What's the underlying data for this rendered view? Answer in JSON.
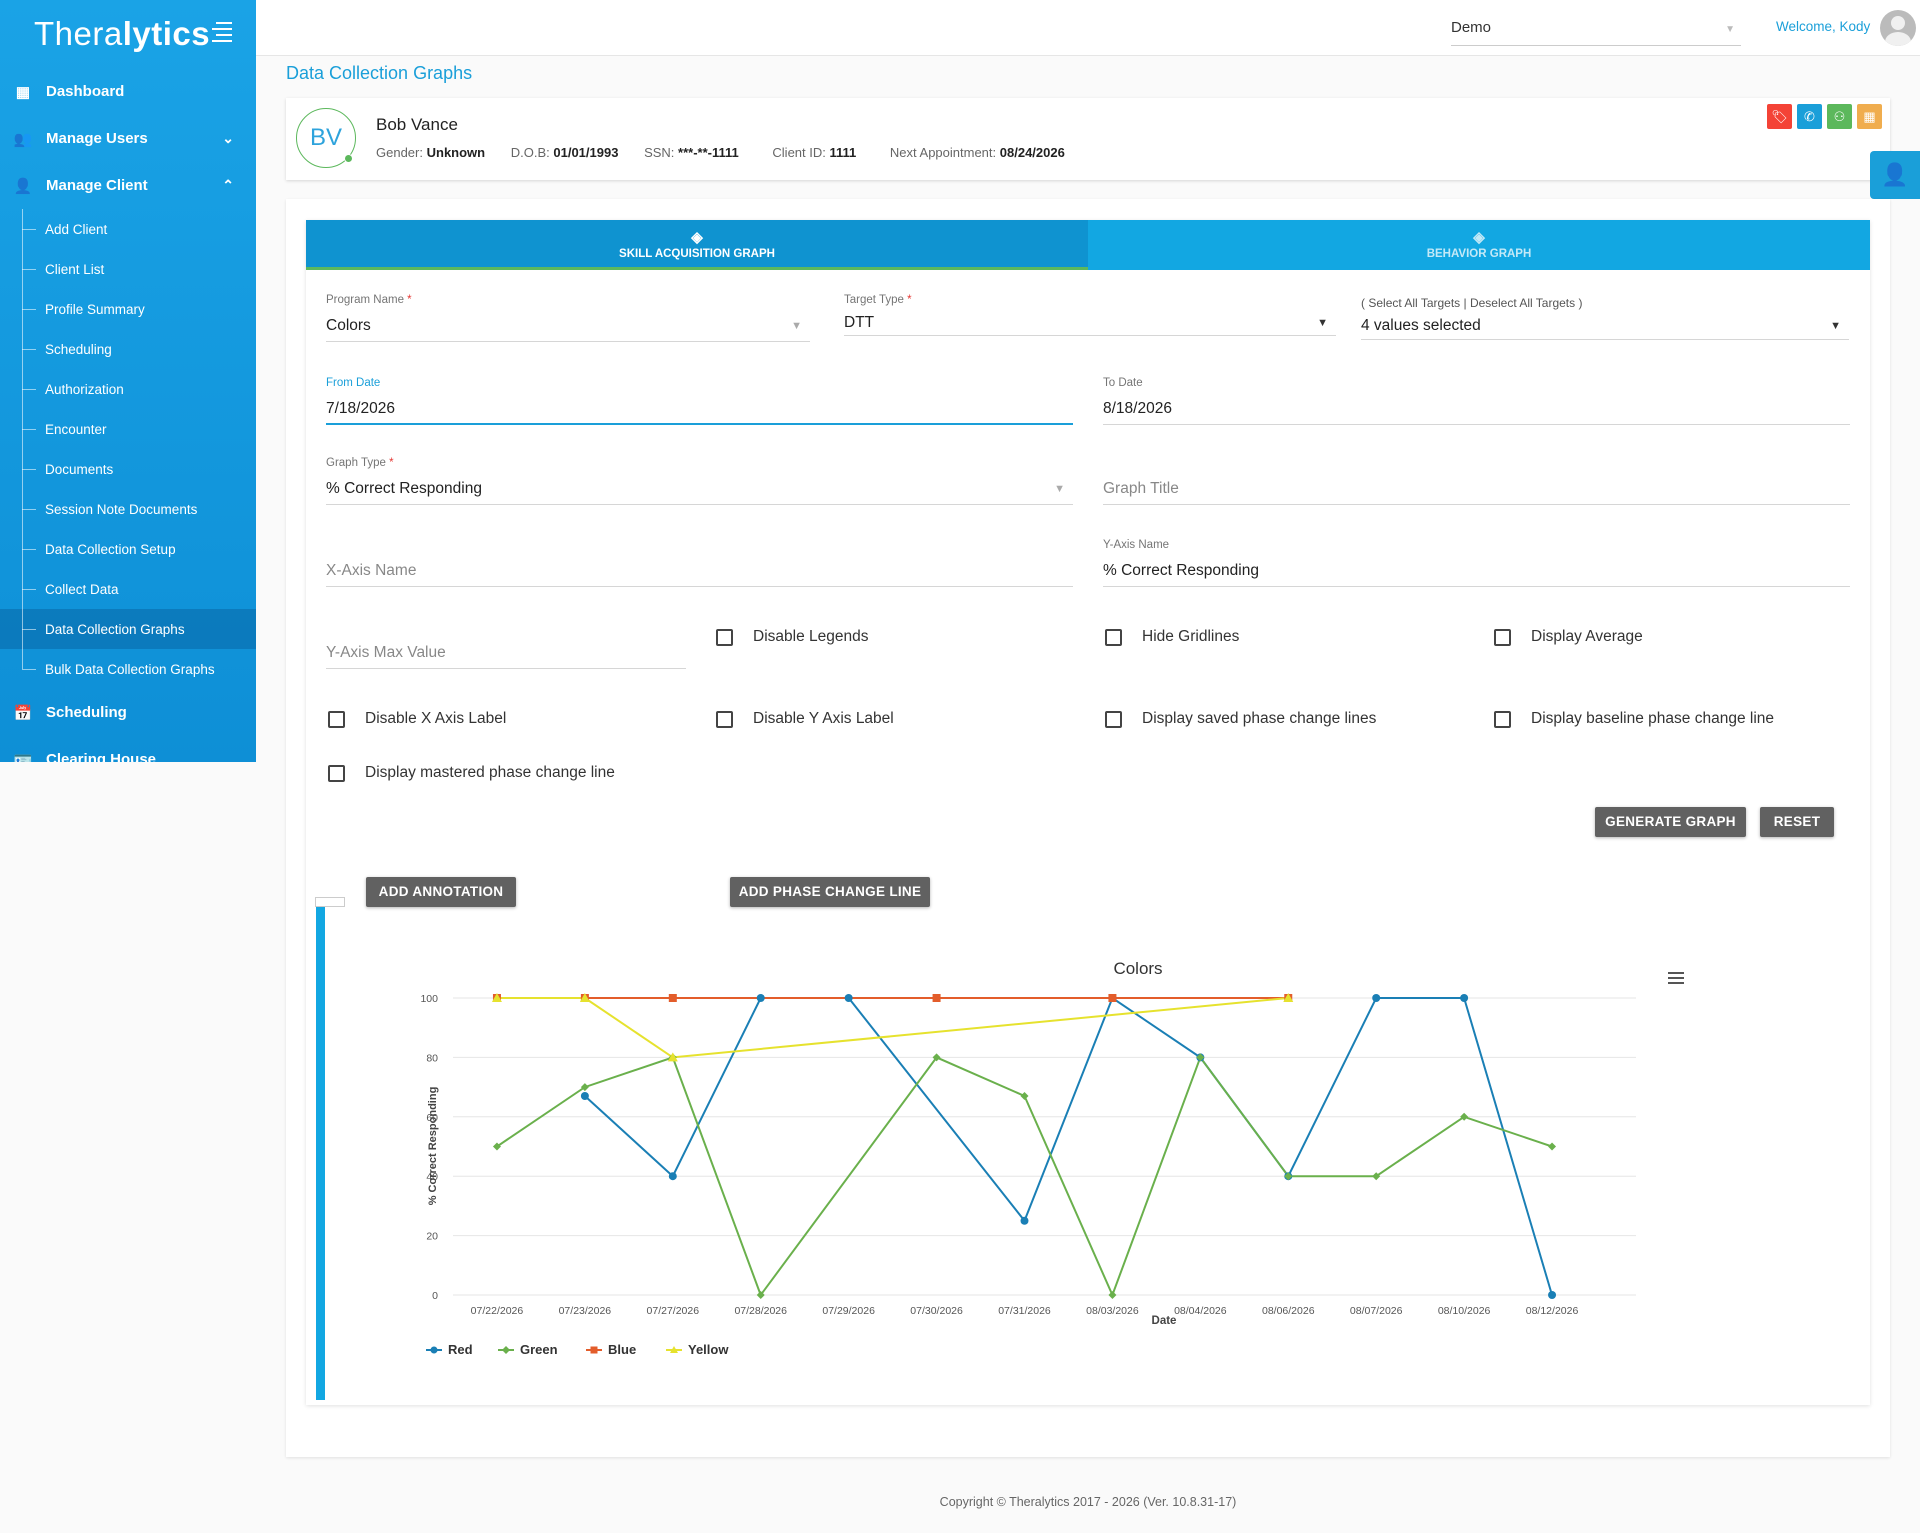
{
  "brand": {
    "prefix": "Thera",
    "suffix": "lytics"
  },
  "sidebar": {
    "items": [
      {
        "label": "Dashboard",
        "icon": "dashboard-icon"
      },
      {
        "label": "Manage Users",
        "icon": "users-icon"
      },
      {
        "label": "Manage Client",
        "icon": "person-icon"
      }
    ],
    "sub_items": [
      "Add Client",
      "Client List",
      "Profile Summary",
      "Scheduling",
      "Authorization",
      "Encounter",
      "Documents",
      "Session Note Documents",
      "Data Collection Setup",
      "Collect Data",
      "Data Collection Graphs",
      "Bulk Data Collection Graphs"
    ],
    "bottom_items": [
      {
        "label": "Scheduling",
        "icon": "calendar-icon"
      },
      {
        "label": "Clearing House",
        "icon": "id-card-icon"
      }
    ]
  },
  "topbar": {
    "org": "Demo",
    "welcome": "Welcome, Kody"
  },
  "page_title": "Data Collection Graphs",
  "client": {
    "initials": "BV",
    "name": "Bob Vance",
    "gender_label": "Gender:",
    "gender": "Unknown",
    "dob_label": "D.O.B:",
    "dob": "01/01/1993",
    "ssn_label": "SSN:",
    "ssn": "***-**-1111",
    "client_id_label": "Client ID:",
    "client_id": "1111",
    "next_appt_label": "Next Appointment:",
    "next_appt": "08/24/2026"
  },
  "action_colors": {
    "tag": "#f44336",
    "phone": "#1a9fd9",
    "user": "#5cb85c",
    "calendar": "#f0ad4e"
  },
  "tabs": {
    "skill": "SKILL ACQUISITION GRAPH",
    "behavior": "BEHAVIOR GRAPH"
  },
  "form": {
    "program_name_label": "Program Name",
    "program_name": "Colors",
    "target_type_label": "Target Type",
    "target_type": "DTT",
    "targets_select_all": "Select All Targets",
    "targets_deselect_all": "Deselect All Targets",
    "targets_value": "4 values selected",
    "from_date_label": "From Date",
    "from_date": "7/18/2026",
    "to_date_label": "To Date",
    "to_date": "8/18/2026",
    "graph_type_label": "Graph Type",
    "graph_type": "% Correct Responding",
    "graph_title_placeholder": "Graph Title",
    "x_axis_placeholder": "X-Axis Name",
    "y_axis_label": "Y-Axis Name",
    "y_axis_value": "% Correct Responding",
    "y_max_placeholder": "Y-Axis Max Value",
    "checkboxes": {
      "disable_legends": "Disable Legends",
      "hide_gridlines": "Hide Gridlines",
      "display_average": "Display Average",
      "disable_x_label": "Disable X Axis Label",
      "disable_y_label": "Disable Y Axis Label",
      "saved_phase": "Display saved phase change lines",
      "baseline_phase": "Display baseline phase change line",
      "mastered_phase": "Display mastered phase change line"
    },
    "generate_button": "GENERATE GRAPH",
    "reset_button": "RESET",
    "add_annotation_button": "ADD ANNOTATION",
    "add_phase_button": "ADD PHASE CHANGE LINE"
  },
  "chart_data": {
    "type": "line",
    "title": "Colors",
    "xlabel": "Date",
    "ylabel": "% Correct Responding",
    "ylim": [
      0,
      100
    ],
    "yticks": [
      0,
      20,
      40,
      60,
      80,
      100
    ],
    "grid": true,
    "legend_position": "bottom-left",
    "categories": [
      "07/22/2026",
      "07/23/2026",
      "07/27/2026",
      "07/28/2026",
      "07/29/2026",
      "07/30/2026",
      "07/31/2026",
      "08/03/2026",
      "08/04/2026",
      "08/06/2026",
      "08/07/2026",
      "08/10/2026",
      "08/12/2026"
    ],
    "series": [
      {
        "name": "Red",
        "color": "#1a7fb5",
        "marker": "circle",
        "values": [
          null,
          67,
          40,
          100,
          100,
          null,
          25,
          100,
          80,
          40,
          100,
          100,
          0
        ]
      },
      {
        "name": "Green",
        "color": "#6ab04c",
        "marker": "diamond",
        "values": [
          50,
          70,
          80,
          0,
          null,
          80,
          67,
          0,
          80,
          40,
          40,
          60,
          50
        ]
      },
      {
        "name": "Blue",
        "color": "#e35d2b",
        "marker": "square",
        "values": [
          100,
          100,
          100,
          null,
          null,
          100,
          null,
          100,
          null,
          100,
          null,
          null,
          null
        ]
      },
      {
        "name": "Yellow",
        "color": "#e6e22e",
        "marker": "triangle",
        "values": [
          100,
          100,
          80,
          null,
          null,
          null,
          null,
          null,
          null,
          100,
          null,
          null,
          null
        ]
      }
    ]
  },
  "footer": "Copyright © Theralytics 2017 - 2026 (Ver. 10.8.31-17)"
}
